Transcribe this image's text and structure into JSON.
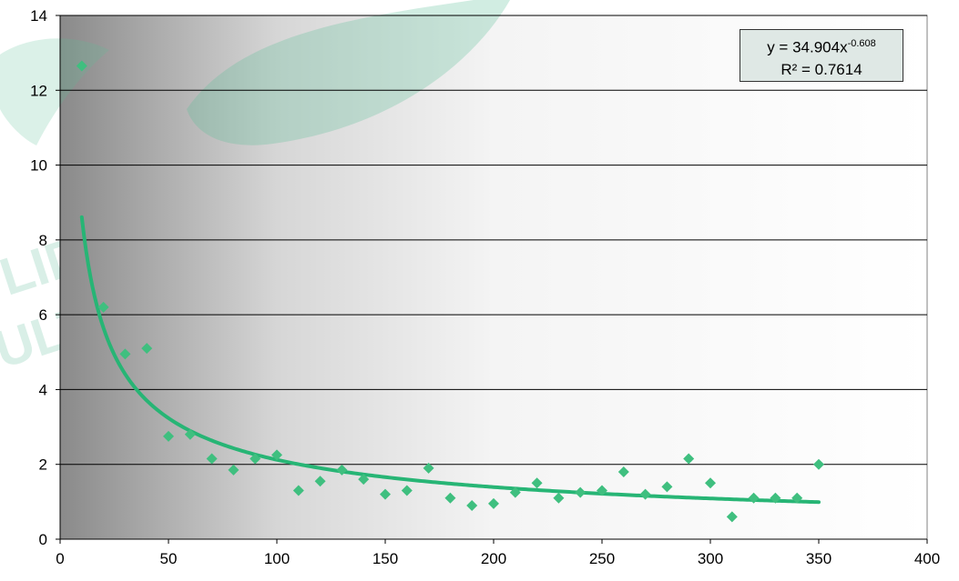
{
  "chart_data": {
    "type": "scatter",
    "x": [
      10,
      20,
      30,
      40,
      50,
      60,
      70,
      80,
      90,
      100,
      110,
      120,
      130,
      140,
      150,
      160,
      170,
      180,
      190,
      200,
      210,
      220,
      230,
      240,
      250,
      260,
      270,
      280,
      290,
      300,
      310,
      320,
      330,
      340,
      350
    ],
    "y": [
      12.65,
      6.2,
      4.95,
      5.1,
      2.75,
      2.8,
      2.15,
      1.85,
      2.15,
      2.25,
      1.3,
      1.55,
      1.85,
      1.6,
      1.2,
      1.3,
      1.9,
      1.1,
      0.9,
      0.95,
      1.25,
      1.5,
      1.1,
      1.25,
      1.3,
      1.8,
      1.2,
      1.4,
      2.15,
      1.5,
      0.6,
      1.1,
      1.1,
      1.1,
      2.0
    ],
    "trendline": {
      "type": "power",
      "a": 34.904,
      "b": -0.608,
      "x_from": 10,
      "x_to": 350
    },
    "xlim": [
      0,
      400
    ],
    "ylim": [
      0,
      14
    ],
    "x_ticks": [
      "0",
      "50",
      "100",
      "150",
      "200",
      "250",
      "300",
      "350",
      "400"
    ],
    "y_ticks": [
      "0",
      "2",
      "4",
      "6",
      "8",
      "10",
      "12",
      "14"
    ],
    "title": "",
    "xlabel": "",
    "ylabel": "",
    "grid": "horizontal",
    "colors": {
      "marker": "#3fbf7f",
      "trend": "#27b575",
      "grid": "#000000",
      "plot_bg_dark": "#808080",
      "plot_bg_light": "#ffffff"
    },
    "equation": {
      "prefix": "y = 34.904x",
      "exponent": "-0.608",
      "r2": "R² = 0.7614",
      "placement": "top-right"
    }
  },
  "watermark": {
    "text_1": "LIDADE",
    "text_2": "ULTURA"
  }
}
